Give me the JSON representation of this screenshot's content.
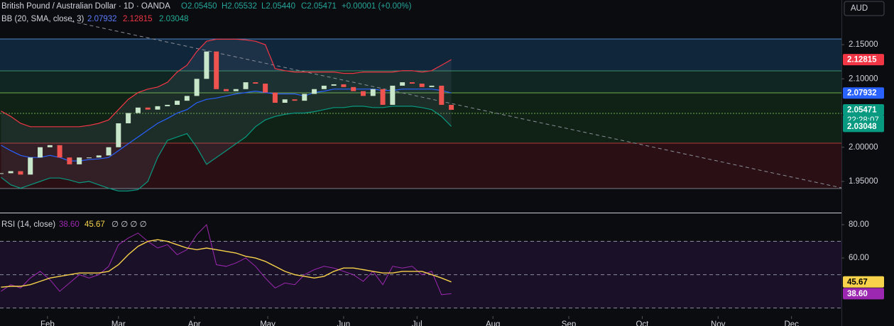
{
  "header": {
    "title": "British Pound / Australian Dollar · 1D · OANDA",
    "open": "O2.05450",
    "high": "H2.05532",
    "low": "L2.05440",
    "close": "C2.05471",
    "change": "+0.00001 (+0.00%)",
    "currency": "AUD"
  },
  "bb_legend": {
    "title": "BB (20, SMA, close, 3)",
    "basis": "2.07932",
    "upper": "2.12815",
    "lower": "2.03048"
  },
  "rsi_legend": {
    "title": "RSI (14, close)",
    "rsi": "38.60",
    "ma": "45.67",
    "extra": "∅ ∅ ∅ ∅"
  },
  "chart_data": [
    {
      "type": "candlestick",
      "x": [
        12,
        16,
        20,
        24,
        28,
        32,
        36,
        40,
        44,
        48,
        52,
        56,
        60,
        64,
        68,
        72,
        76,
        80,
        84,
        88,
        92,
        96,
        100,
        104,
        108,
        112,
        116,
        120,
        124,
        128,
        132,
        136,
        140,
        144,
        148,
        152,
        156,
        160,
        164,
        168,
        172,
        176,
        180,
        184,
        188,
        192,
        196
      ],
      "values": [
        1.962,
        1.965,
        1.96,
        1.985,
        2.0,
        2.003,
        1.985,
        1.975,
        1.985,
        1.985,
        1.988,
        2.0,
        2.035,
        2.05,
        2.058,
        2.055,
        2.06,
        2.062,
        2.068,
        2.075,
        2.1,
        2.14,
        2.085,
        2.082,
        2.085,
        2.095,
        2.093,
        2.08,
        2.065,
        2.07,
        2.068,
        2.078,
        2.085,
        2.09,
        2.092,
        2.088,
        2.082,
        2.075,
        2.085,
        2.062,
        2.09,
        2.095,
        2.093,
        2.088,
        2.09,
        2.062,
        2.05471
      ],
      "up_color": "#c8e6c9",
      "down_color": "#ef5350",
      "bb": {
        "upper": [
          2.053,
          2.045,
          2.035,
          2.03,
          2.03,
          2.03,
          2.03,
          2.03,
          2.03,
          2.032,
          2.035,
          2.04,
          2.055,
          2.07,
          2.08,
          2.085,
          2.088,
          2.095,
          2.11,
          2.12,
          2.14,
          2.155,
          2.158,
          2.158,
          2.158,
          2.157,
          2.155,
          2.15,
          2.115,
          2.112,
          2.11,
          2.11,
          2.11,
          2.11,
          2.11,
          2.108,
          2.108,
          2.11,
          2.11,
          2.11,
          2.11,
          2.112,
          2.112,
          2.11,
          2.112,
          2.12,
          2.12815
        ],
        "basis": [
          2.003,
          1.995,
          1.988,
          1.985,
          1.985,
          1.988,
          1.985,
          1.98,
          1.98,
          1.982,
          1.983,
          1.985,
          1.995,
          2.005,
          2.015,
          2.025,
          2.035,
          2.042,
          2.05,
          2.055,
          2.065,
          2.07,
          2.072,
          2.075,
          2.078,
          2.08,
          2.082,
          2.08,
          2.078,
          2.078,
          2.078,
          2.075,
          2.08,
          2.082,
          2.085,
          2.085,
          2.085,
          2.085,
          2.085,
          2.083,
          2.083,
          2.085,
          2.085,
          2.085,
          2.085,
          2.083,
          2.07932
        ],
        "lower": [
          1.956,
          1.945,
          1.94,
          1.945,
          1.95,
          1.955,
          1.955,
          1.952,
          1.948,
          1.95,
          1.945,
          1.94,
          1.936,
          1.936,
          1.938,
          1.95,
          1.985,
          2.01,
          2.015,
          2.02,
          2.0,
          1.975,
          1.985,
          1.995,
          2.005,
          2.015,
          2.03,
          2.04,
          2.045,
          2.048,
          2.05,
          2.05,
          2.052,
          2.055,
          2.058,
          2.058,
          2.06,
          2.06,
          2.058,
          2.058,
          2.06,
          2.06,
          2.06,
          2.058,
          2.055,
          2.045,
          2.03048
        ],
        "upper_color": "#f23645",
        "basis_color": "#2962ff",
        "lower_color": "#089981"
      },
      "xlim": [
        11.6,
        355.4
      ],
      "xticks": [
        {
          "value": 31,
          "label": "Feb"
        },
        {
          "value": 60,
          "label": "Mar"
        },
        {
          "value": 91,
          "label": "Apr"
        },
        {
          "value": 121,
          "label": "May"
        },
        {
          "value": 152,
          "label": "Jun"
        },
        {
          "value": 182,
          "label": "Jul"
        },
        {
          "value": 213,
          "label": "Aug"
        },
        {
          "value": 244,
          "label": "Sep"
        },
        {
          "value": 274,
          "label": "Oct"
        },
        {
          "value": 305,
          "label": "Nov"
        },
        {
          "value": 335,
          "label": "Dec"
        }
      ],
      "ylim": [
        1.9044,
        2.2153
      ],
      "yticks": [
        {
          "value": 2.15,
          "label": "2.15000"
        },
        {
          "value": 2.1,
          "label": "2.10000"
        },
        {
          "value": 2.0,
          "label": "2.00000"
        },
        {
          "value": 1.95,
          "label": "1.95000"
        }
      ],
      "price_badges": [
        {
          "value": 2.12815,
          "label": "2.12815",
          "color": "#f23645"
        },
        {
          "value": 2.07932,
          "label": "2.07932",
          "color": "#2962ff"
        },
        {
          "value": 2.05471,
          "label": "2.05471",
          "color": "#089981"
        },
        {
          "value": 2.03048,
          "label": "2.03048",
          "color": "#089981"
        }
      ],
      "countdown": "22:28:07"
    },
    {
      "type": "line",
      "series": [
        {
          "values": [
            40,
            44,
            42,
            48,
            52,
            47,
            40,
            45,
            50,
            48,
            50,
            55,
            68,
            72,
            75,
            70,
            66,
            68,
            62,
            65,
            74,
            80,
            56,
            55,
            57,
            60,
            55,
            48,
            42,
            45,
            44,
            50,
            53,
            55,
            54,
            52,
            50,
            46,
            52,
            44,
            55,
            54,
            55,
            50,
            52,
            38,
            38.6
          ],
          "color": "#9c27b0"
        },
        {
          "values": [
            42.5,
            43,
            43,
            44,
            46,
            48,
            49,
            50,
            51,
            51,
            51,
            52,
            56,
            62,
            67,
            70,
            71,
            70,
            68,
            66,
            65,
            66,
            65,
            64,
            63,
            61,
            60,
            58,
            55,
            52,
            50,
            49,
            48,
            49,
            52,
            54,
            54,
            53,
            52,
            51,
            51,
            52,
            52,
            52,
            50,
            48,
            45.67
          ],
          "color": "#f7d24a"
        }
      ],
      "ylim": [
        27.7,
        86.4
      ],
      "yticks": [
        {
          "value": 80,
          "label": "80.00"
        },
        {
          "value": 60,
          "label": "60.00"
        }
      ],
      "levels": [
        70,
        50,
        30
      ],
      "badges": [
        {
          "value": 45.67,
          "label": "45.67",
          "color": "#f7d24a"
        },
        {
          "value": 38.6,
          "label": "38.60",
          "color": "#9c27b0"
        }
      ]
    }
  ]
}
